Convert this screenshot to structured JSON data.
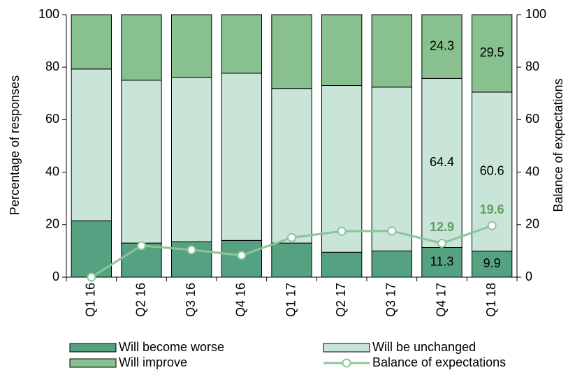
{
  "chart_data": {
    "type": "stacked_bar_line",
    "categories": [
      "Q1 16",
      "Q2 16",
      "Q3 16",
      "Q4 16",
      "Q1 17",
      "Q2 17",
      "Q3 17",
      "Q4 17",
      "Q1 18"
    ],
    "ylabel": "Percentage of responses",
    "y2label": "Balance of expectations",
    "ylim": [
      0,
      100
    ],
    "yticks": [
      0,
      20,
      40,
      60,
      80,
      100
    ],
    "y2lim": [
      0,
      100
    ],
    "y2ticks": [
      0,
      20,
      40,
      60,
      80,
      100
    ],
    "series": [
      {
        "name": "Will become worse",
        "type": "bar",
        "color": "#55a282",
        "values": [
          21.5,
          13,
          13.5,
          14,
          13,
          9.5,
          10,
          11.3,
          9.9
        ],
        "value_labels": [
          null,
          null,
          null,
          null,
          null,
          null,
          null,
          "11.3",
          "9.9"
        ]
      },
      {
        "name": "Will be unchanged",
        "type": "bar",
        "color": "#c8e5d7",
        "values": [
          57.8,
          62,
          62.6,
          63.7,
          58.9,
          63.5,
          62.4,
          64.4,
          60.6
        ],
        "value_labels": [
          null,
          null,
          null,
          null,
          null,
          null,
          null,
          "64.4",
          "60.6"
        ]
      },
      {
        "name": "Will improve",
        "type": "bar",
        "color": "#88c08f",
        "values": [
          20.7,
          25,
          23.9,
          22.3,
          28.1,
          27,
          27.6,
          24.3,
          29.5
        ],
        "value_labels": [
          null,
          null,
          null,
          null,
          null,
          null,
          null,
          "24.3",
          "29.5"
        ]
      },
      {
        "name": "Balance of expectations",
        "type": "line",
        "axis": "y2",
        "color": "#8cc49a",
        "values": [
          0,
          12,
          10.4,
          8.3,
          15.1,
          17.5,
          17.6,
          12.9,
          19.6
        ],
        "value_labels": [
          null,
          null,
          null,
          null,
          null,
          null,
          null,
          "12.9",
          "19.6"
        ]
      }
    ],
    "legend": "bottom"
  }
}
